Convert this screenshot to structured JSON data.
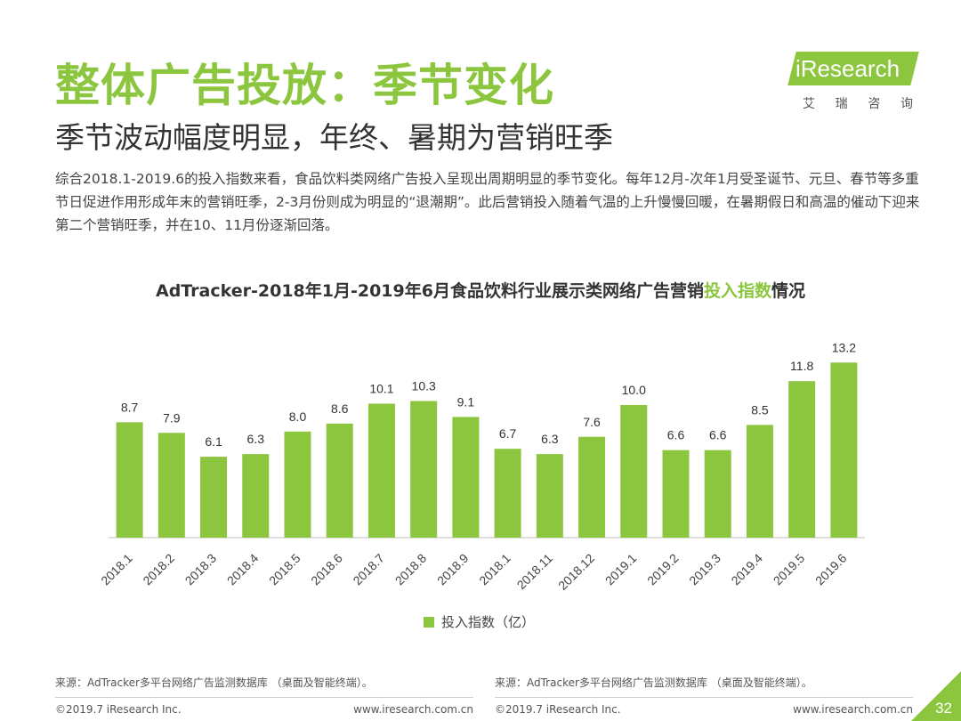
{
  "page": {
    "title": "整体广告投放：季节变化",
    "subtitle": "季节波动幅度明显，年终、暑期为营销旺季",
    "summary": "综合2018.1-2019.6的投入指数来看，食品饮料类网络广告投入呈现出周期明显的季节变化。每年12月-次年1月受圣诞节、元旦、春节等多重节日促进作用形成年末的营销旺季，2-3月份则成为明显的“退潮期”。此后营销投入随着气温的上升慢慢回暖，在暑期假日和高温的催动下迎来第二个营销旺季，并在10、11月份逐渐回落。",
    "page_number": "32"
  },
  "logo": {
    "brand": "iResearch",
    "cn_chars": [
      "艾",
      "瑞",
      "咨",
      "询"
    ]
  },
  "chart_title": {
    "before": "AdTracker-2018年1月-2019年6月食品饮料行业展示类网络广告营销",
    "highlight": "投入指数",
    "after": "情况"
  },
  "chart_data": {
    "type": "bar",
    "title": "AdTracker-2018年1月-2019年6月食品饮料行业展示类网络广告营销投入指数情况",
    "categories": [
      "2018.1",
      "2018.2",
      "2018.3",
      "2018.4",
      "2018.5",
      "2018.6",
      "2018.7",
      "2018.8",
      "2018.9",
      "2018.1",
      "2018.11",
      "2018.12",
      "2019.1",
      "2019.2",
      "2019.3",
      "2019.4",
      "2019.5",
      "2019.6"
    ],
    "series": [
      {
        "name": "投入指数（亿）",
        "values": [
          8.7,
          7.9,
          6.1,
          6.3,
          8.0,
          8.6,
          10.1,
          10.3,
          9.1,
          6.7,
          6.3,
          7.6,
          10.0,
          6.6,
          6.6,
          8.5,
          11.8,
          13.2
        ],
        "labels": [
          "8.7",
          "7.9",
          "6.1",
          "6.3",
          "8.0",
          "8.6",
          "10.1",
          "10.3",
          "9.1",
          "6.7",
          "6.3",
          "7.6",
          "10.0",
          "6.6",
          "6.6",
          "8.5",
          "11.8",
          "13.2"
        ]
      }
    ],
    "xlabel": "",
    "ylabel": "",
    "ylim": [
      0,
      14
    ],
    "grid": false,
    "legend_position": "bottom",
    "bar_color": "#8cc63f"
  },
  "legend": {
    "label": "投入指数（亿）"
  },
  "footer": {
    "left": {
      "source": "来源：AdTracker多平台网络广告监测数据库 （桌面及智能终端）。",
      "copyright": "©2019.7 iResearch Inc.",
      "url": "www.iresearch.com.cn"
    },
    "right": {
      "source": "来源：AdTracker多平台网络广告监测数据库 （桌面及智能终端）。",
      "copyright": "©2019.7 iResearch Inc.",
      "url": "www.iresearch.com.cn"
    }
  }
}
